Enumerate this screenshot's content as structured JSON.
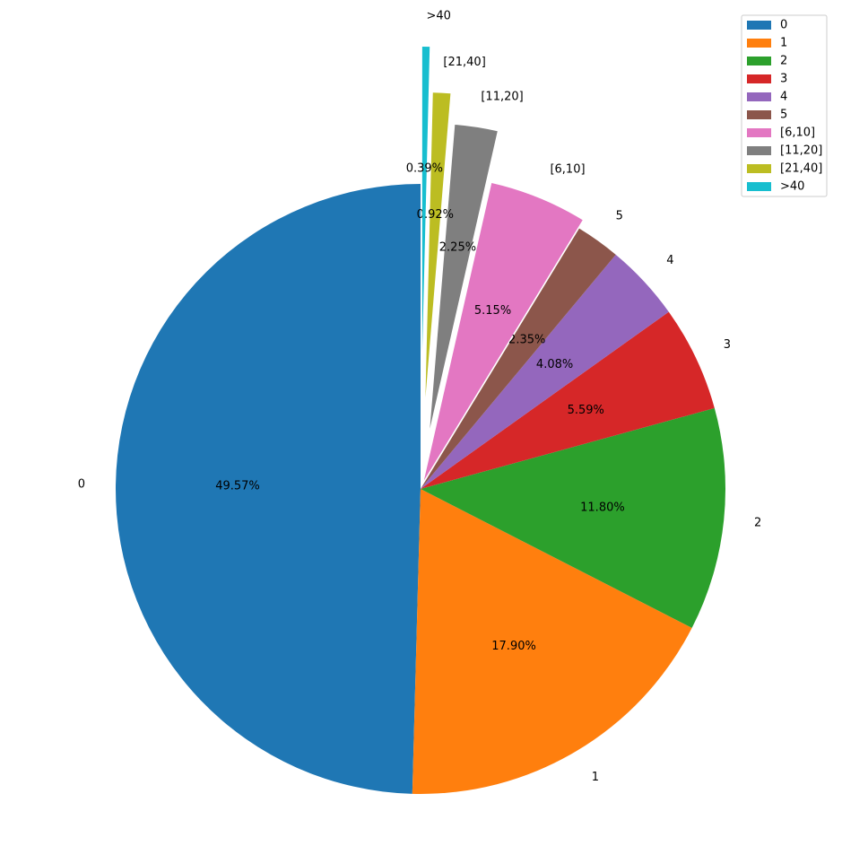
{
  "chart_data": {
    "type": "pie",
    "categories": [
      "0",
      "1",
      "2",
      "3",
      "4",
      "5",
      "[6,10]",
      "[11,20]",
      "[21,40]",
      ">40"
    ],
    "values": [
      49.57,
      17.9,
      11.8,
      5.59,
      4.08,
      2.35,
      5.15,
      2.25,
      0.92,
      0.39
    ],
    "value_labels": [
      "49.57%",
      "17.90%",
      "11.80%",
      "5.59%",
      "4.08%",
      "2.35%",
      "5.15%",
      "2.25%",
      "0.92%",
      "0.39%"
    ],
    "colors": [
      "#1f77b4",
      "#ff7f0e",
      "#2ca02c",
      "#d62728",
      "#9467bd",
      "#8c564b",
      "#e377c2",
      "#7f7f7f",
      "#bcbd22",
      "#17becf"
    ],
    "legend": "upper right"
  }
}
